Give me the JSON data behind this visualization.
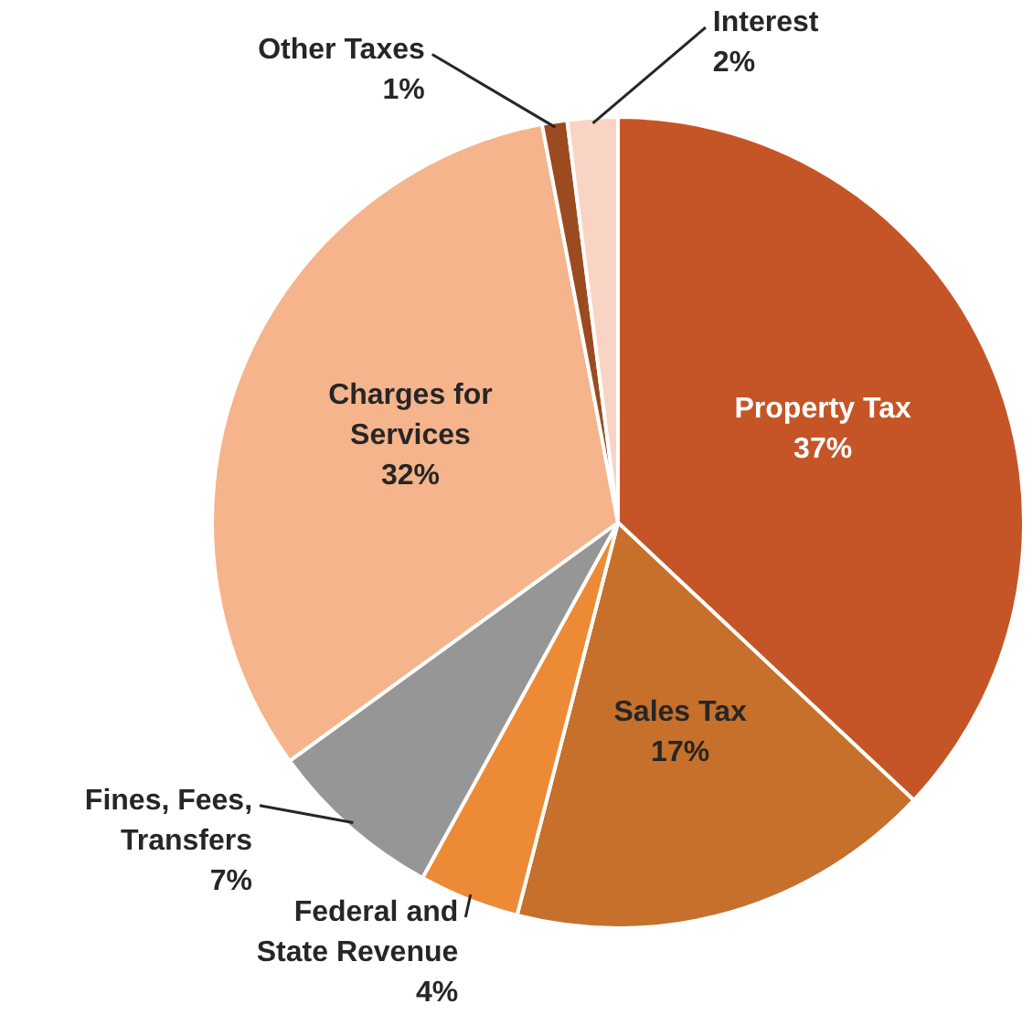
{
  "chart_data": {
    "type": "pie",
    "categories": [
      "Property Tax",
      "Sales Tax",
      "Federal and State Revenue",
      "Fines, Fees, Transfers",
      "Charges for Services",
      "Other Taxes",
      "Interest"
    ],
    "values": [
      37,
      17,
      4,
      7,
      32,
      1,
      2
    ],
    "value_labels": [
      "37%",
      "17%",
      "4%",
      "7%",
      "32%",
      "1%",
      "2%"
    ],
    "colors": [
      "#c55526",
      "#c6702b",
      "#ed8a36",
      "#969696",
      "#f5b48b",
      "#9c4a20",
      "#f9d4c4"
    ]
  }
}
